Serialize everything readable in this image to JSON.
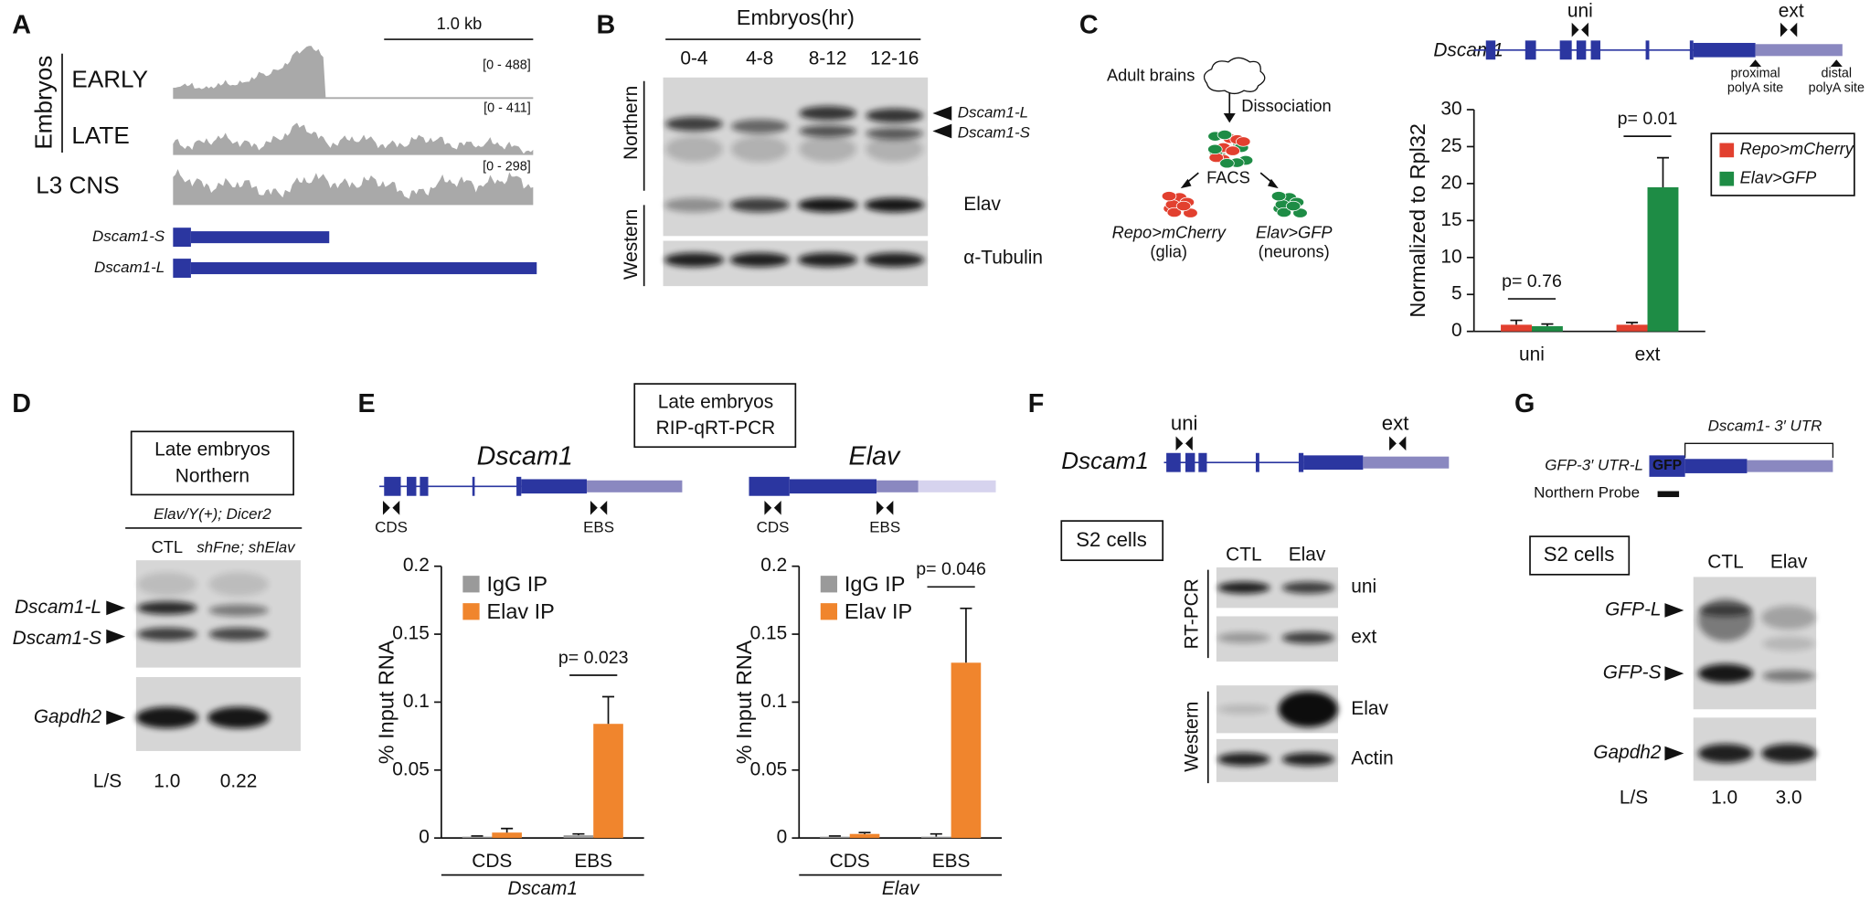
{
  "panels": {
    "A": {
      "label": "A",
      "scale": "1.0 kb",
      "group": "Embryos",
      "tracks": [
        {
          "name": "EARLY",
          "range": "[0 - 488]"
        },
        {
          "name": "LATE",
          "range": "[0 - 411]"
        },
        {
          "name": "L3 CNS",
          "range": "[0 - 298]"
        }
      ],
      "isoforms": [
        "Dscam1-S",
        "Dscam1-L"
      ]
    },
    "B": {
      "label": "B",
      "header": "Embryos(hr)",
      "lanes": [
        "0-4",
        "4-8",
        "8-12",
        "12-16"
      ],
      "blots": [
        "Northern",
        "Western"
      ],
      "bands": [
        "Dscam1-L",
        "Dscam1-S",
        "Elav",
        "α-Tubulin"
      ]
    },
    "C": {
      "label": "C",
      "steps": [
        "Adult brains",
        "Dissociation",
        "FACS"
      ],
      "populations": [
        {
          "name": "Repo>mCherry",
          "cells": "(glia)"
        },
        {
          "name": "Elav>GFP",
          "cells": "(neurons)"
        }
      ],
      "gene": "Dscam1",
      "primers": [
        "uni",
        "ext"
      ],
      "sites": [
        [
          "proximal",
          "polyA site"
        ],
        [
          "distal",
          "polyA site"
        ]
      ]
    },
    "D": {
      "label": "D",
      "box": [
        "Late embryos",
        "Northern"
      ],
      "genotype": "Elav/Y(+); Dicer2",
      "lanes": [
        "CTL",
        "shFne; shElav"
      ],
      "bands": [
        "Dscam1-L",
        "Dscam1-S",
        "Gapdh2"
      ],
      "ratio": {
        "label": "L/S",
        "values": [
          "1.0",
          "0.22"
        ]
      }
    },
    "E": {
      "label": "E",
      "box": [
        "Late embryos",
        "RIP-qRT-PCR"
      ],
      "genes": [
        {
          "name": "Dscam1",
          "regions": [
            "CDS",
            "EBS"
          ]
        },
        {
          "name": "Elav",
          "regions": [
            "CDS",
            "EBS"
          ]
        }
      ]
    },
    "F": {
      "label": "F",
      "gene": "Dscam1",
      "primers": [
        "uni",
        "ext"
      ],
      "box": "S2 cells",
      "lanes": [
        "CTL",
        "Elav"
      ],
      "blots": [
        "RT-PCR",
        "Western"
      ],
      "bands": [
        "uni",
        "ext",
        "Elav",
        "Actin"
      ]
    },
    "G": {
      "label": "G",
      "utr": "Dscam1- 3′ UTR",
      "construct": "GFP-3′ UTR-L",
      "gfp": "GFP",
      "probe": "Northern Probe",
      "box": "S2 cells",
      "lanes": [
        "CTL",
        "Elav"
      ],
      "bands": [
        "GFP-L",
        "GFP-S",
        "Gapdh2"
      ],
      "ratio": {
        "label": "L/S",
        "values": [
          "1.0",
          "3.0"
        ]
      }
    }
  },
  "chart_data": [
    {
      "type": "bar",
      "ylabel": "Normalized to Rpl32",
      "categories": [
        "uni",
        "ext"
      ],
      "series": [
        {
          "name": "Repo>mCherry",
          "color": "#e2402f",
          "values": [
            0.9,
            0.9
          ],
          "errors": [
            0.6,
            0.3
          ]
        },
        {
          "name": "Elav>GFP",
          "color": "#1e8c45",
          "values": [
            0.7,
            19.5
          ],
          "errors": [
            0.3,
            4
          ]
        }
      ],
      "ylim": [
        0,
        30
      ],
      "yticks": [
        0,
        5,
        10,
        15,
        20,
        25,
        30
      ],
      "annotations": [
        "p= 0.76",
        "p= 0.01"
      ],
      "legend": "upper right"
    },
    {
      "type": "bar",
      "ylabel": "% Input RNA",
      "xlabel": "Dscam1",
      "categories": [
        "CDS",
        "EBS"
      ],
      "series": [
        {
          "name": "IgG IP",
          "color": "#9a9a9a",
          "values": [
            0.001,
            0.002
          ],
          "errors": [
            0.0005,
            0.001
          ]
        },
        {
          "name": "Elav IP",
          "color": "#f0852d",
          "values": [
            0.004,
            0.084
          ],
          "errors": [
            0.003,
            0.02
          ]
        }
      ],
      "ylim": [
        0,
        0.2
      ],
      "yticks": [
        0,
        0.05,
        0.1,
        0.15,
        0.2
      ],
      "annotations": [
        "p= 0.023"
      ],
      "legend": "upper left"
    },
    {
      "type": "bar",
      "ylabel": "% Input RNA",
      "xlabel": "Elav",
      "categories": [
        "CDS",
        "EBS"
      ],
      "series": [
        {
          "name": "IgG IP",
          "color": "#9a9a9a",
          "values": [
            0.001,
            0.001
          ],
          "errors": [
            0.0005,
            0.002
          ]
        },
        {
          "name": "Elav IP",
          "color": "#f0852d",
          "values": [
            0.003,
            0.129
          ],
          "errors": [
            0.001,
            0.04
          ]
        }
      ],
      "ylim": [
        0,
        0.2
      ],
      "yticks": [
        0,
        0.05,
        0.1,
        0.15,
        0.2
      ],
      "annotations": [
        "p= 0.046"
      ],
      "legend": "upper left"
    }
  ]
}
